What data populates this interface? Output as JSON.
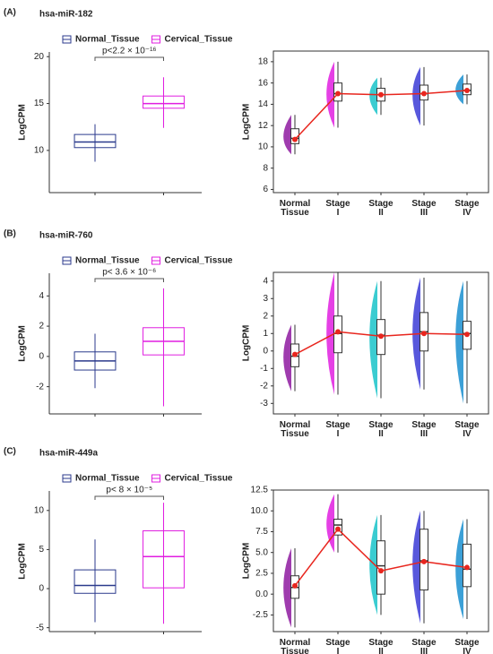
{
  "chart_data": [
    {
      "type": "group-box",
      "panel": "(A)",
      "title": "hsa-miR-182",
      "y_label": "LogCPM",
      "annotation": "p<2.2 × 10⁻¹⁶",
      "ylim": [
        5.5,
        20.5
      ],
      "yticks": [
        10,
        15,
        20
      ],
      "series": [
        {
          "name": "Normal_Tissue",
          "color": "#2b3a8c",
          "box": [
            8.8,
            10.3,
            10.9,
            11.7,
            12.8
          ]
        },
        {
          "name": "Cervical_Tissue",
          "color": "#e01ee0",
          "box": [
            12.4,
            14.5,
            15.0,
            15.8,
            17.8
          ]
        }
      ]
    },
    {
      "type": "stage-box",
      "y_label": "LogCPM",
      "ylim": [
        5.7,
        19
      ],
      "yticks": [
        6,
        8,
        10,
        12,
        14,
        16,
        18
      ],
      "categories": [
        "Normal Tissue",
        "Stage I",
        "Stage II",
        "Stage III",
        "Stage IV"
      ],
      "colors": [
        "#8e1aa0",
        "#e01ee0",
        "#19c3c9",
        "#3b3bd6",
        "#1a8fd0"
      ],
      "mean_color": "#e8261e",
      "boxes": [
        [
          9.3,
          10.3,
          10.8,
          11.7,
          13
        ],
        [
          11.8,
          14.3,
          15,
          16,
          18
        ],
        [
          13,
          14.3,
          14.9,
          15.5,
          16.5
        ],
        [
          12,
          14.4,
          15,
          15.8,
          17.5
        ],
        [
          14,
          14.9,
          15.3,
          15.9,
          16.8
        ]
      ],
      "means": [
        10.7,
        15,
        14.9,
        15,
        15.3
      ]
    },
    {
      "type": "group-box",
      "panel": "(B)",
      "title": "hsa-miR-760",
      "y_label": "LogCPM",
      "annotation": "p< 3.6 × 10⁻⁶",
      "ylim": [
        -3.8,
        5.5
      ],
      "yticks": [
        -2,
        0,
        2,
        4
      ],
      "series": [
        {
          "name": "Normal_Tissue",
          "color": "#2b3a8c",
          "box": [
            -2.1,
            -0.9,
            -0.3,
            0.3,
            1.5
          ]
        },
        {
          "name": "Cervical_Tissue",
          "color": "#e01ee0",
          "box": [
            -3.3,
            0.1,
            1.0,
            1.9,
            4.5
          ]
        }
      ]
    },
    {
      "type": "stage-box",
      "y_label": "LogCPM",
      "ylim": [
        -3.6,
        4.5
      ],
      "yticks": [
        -3,
        -2,
        -1,
        0,
        1,
        2,
        3,
        4
      ],
      "categories": [
        "Normal Tissue",
        "Stage I",
        "Stage II",
        "Stage III",
        "Stage IV"
      ],
      "colors": [
        "#8e1aa0",
        "#e01ee0",
        "#19c3c9",
        "#3b3bd6",
        "#1a8fd0"
      ],
      "mean_color": "#e8261e",
      "boxes": [
        [
          -2.3,
          -0.9,
          -0.3,
          0.4,
          1.5
        ],
        [
          -2.5,
          -0.1,
          1.0,
          2.0,
          4.5
        ],
        [
          -2.7,
          -0.2,
          0.9,
          1.8,
          4
        ],
        [
          -2.2,
          0,
          1.1,
          2.2,
          4.2
        ],
        [
          -3,
          0.1,
          1.0,
          1.7,
          4
        ]
      ],
      "means": [
        -0.2,
        1.1,
        0.85,
        1.0,
        0.95
      ]
    },
    {
      "type": "group-box",
      "panel": "(C)",
      "title": "hsa-miR-449a",
      "y_label": "LogCPM",
      "annotation": "p< 8 × 10⁻⁵",
      "ylim": [
        -5.5,
        12.5
      ],
      "yticks": [
        -5,
        0,
        5,
        10
      ],
      "series": [
        {
          "name": "Normal_Tissue",
          "color": "#2b3a8c",
          "box": [
            -4.3,
            -0.6,
            0.4,
            2.4,
            6.3
          ]
        },
        {
          "name": "Cervical_Tissue",
          "color": "#e01ee0",
          "box": [
            -4.5,
            0.1,
            4.1,
            7.4,
            11
          ]
        }
      ]
    },
    {
      "type": "stage-box",
      "y_label": "LogCPM",
      "ylim": [
        -4.5,
        12.5
      ],
      "yticks": [
        -2.5,
        {
          "value": 0,
          "label": "0.0"
        },
        2.5,
        {
          "value": 5,
          "label": "5.0"
        },
        7.5,
        {
          "value": 10,
          "label": "10.0"
        },
        12.5
      ],
      "categories": [
        "Normal Tissue",
        "Stage I",
        "Stage II",
        "Stage III",
        "Stage IV"
      ],
      "colors": [
        "#8e1aa0",
        "#e01ee0",
        "#19c3c9",
        "#3b3bd6",
        "#1a8fd0"
      ],
      "mean_color": "#e8261e",
      "boxes": [
        [
          -4,
          -0.5,
          0.8,
          2.2,
          5.5
        ],
        [
          5,
          7.1,
          8.3,
          9,
          12
        ],
        [
          -2.5,
          0,
          3.4,
          6.4,
          9.5
        ],
        [
          -3.5,
          0.5,
          4,
          7.8,
          10
        ],
        [
          -3,
          0.9,
          3,
          6,
          9
        ]
      ],
      "means": [
        1,
        7.8,
        2.8,
        3.9,
        3.2
      ]
    }
  ]
}
